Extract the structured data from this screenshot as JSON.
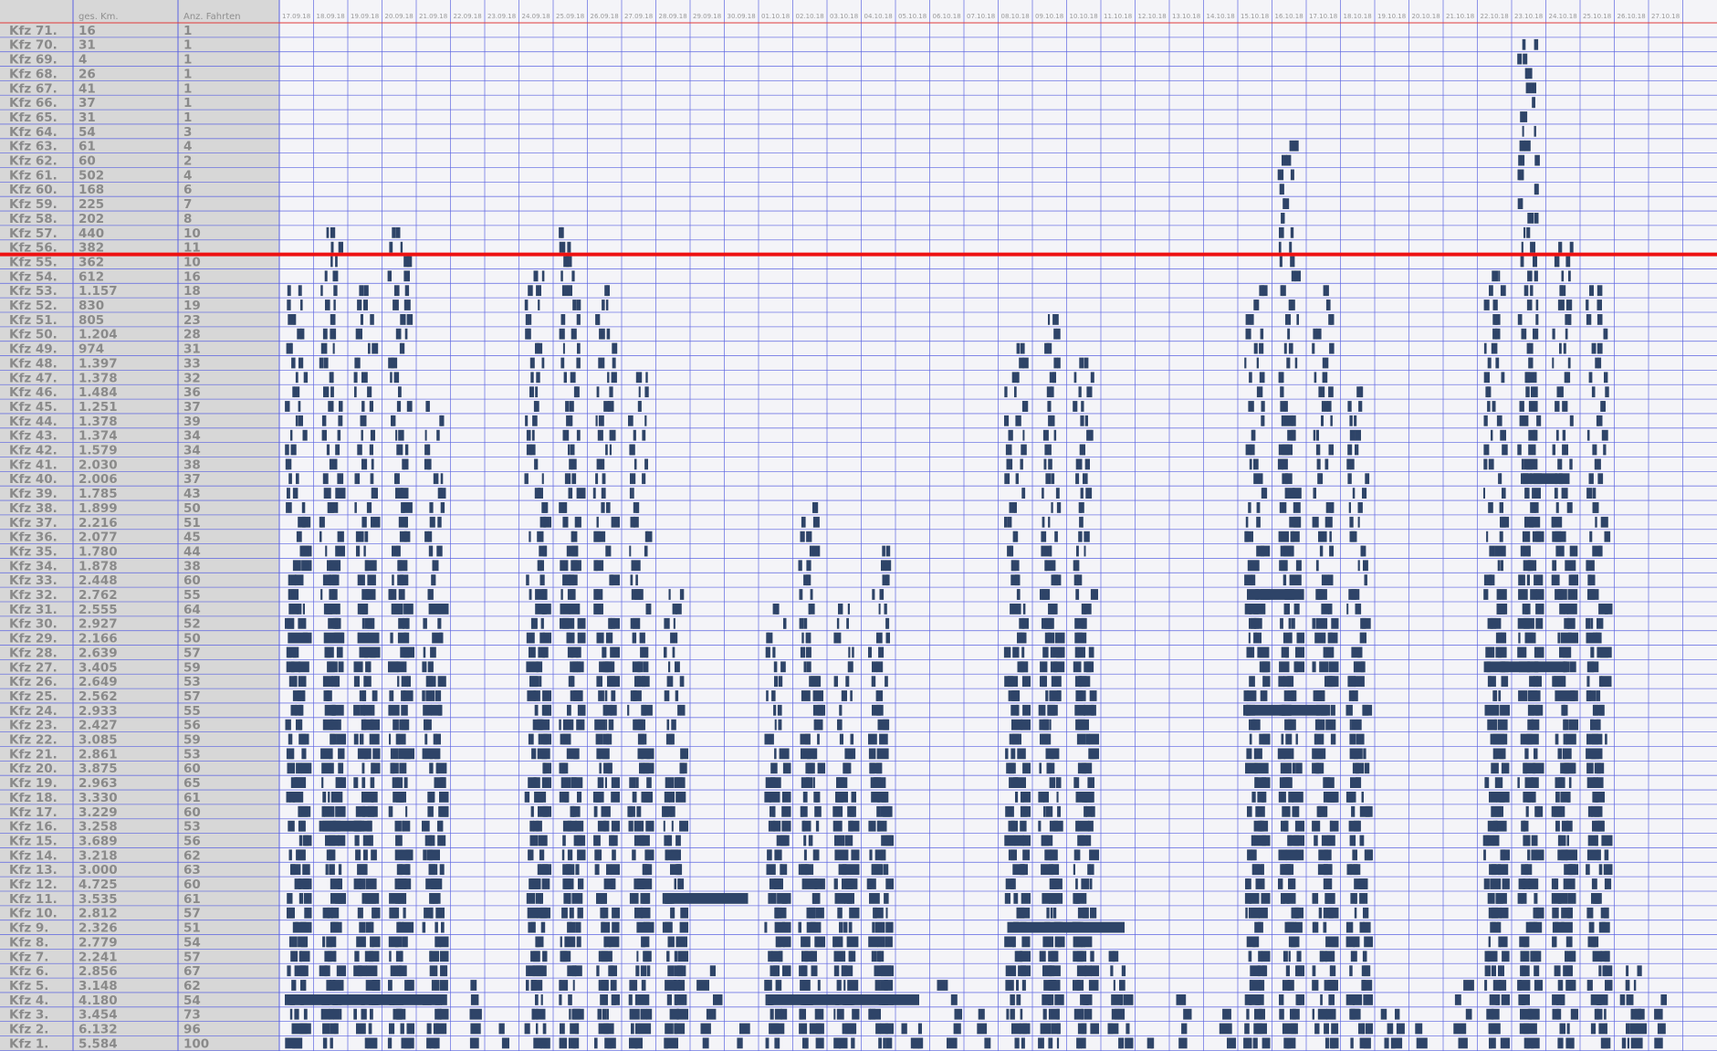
{
  "chart_data": {
    "type": "bar",
    "columns": [
      "",
      "ges. Km.",
      "Anz. Fahrten"
    ],
    "x_ticks": [
      "17.09.18",
      "18.09.18",
      "19.09.18",
      "20.09.18",
      "21.09.18",
      "22.09.18",
      "23.09.18",
      "24.09.18",
      "25.09.18",
      "26.09.18",
      "27.09.18",
      "28.09.18",
      "29.09.18",
      "30.09.18",
      "01.10.18",
      "02.10.18",
      "03.10.18",
      "04.10.18",
      "05.10.18",
      "06.10.18",
      "07.10.18",
      "08.10.18",
      "09.10.18",
      "10.10.18",
      "11.10.18",
      "12.10.18",
      "13.10.18",
      "14.10.18",
      "15.10.18",
      "16.10.18",
      "17.10.18",
      "18.10.18",
      "19.10.18",
      "20.10.18",
      "21.10.18",
      "22.10.18",
      "23.10.18",
      "24.10.18",
      "25.10.18",
      "26.10.18",
      "27.10.18"
    ],
    "threshold_row": "Kfz 56.",
    "colors": {
      "bar": "#2e4468",
      "grid": "#5b63e0",
      "threshold": "#ee1111",
      "label_bg": "#d7d7d7",
      "plot_bg": "#f4f4f8"
    },
    "rows": [
      {
        "name": "Kfz 71.",
        "km": "16",
        "trips": "1"
      },
      {
        "name": "Kfz 70.",
        "km": "31",
        "trips": "1"
      },
      {
        "name": "Kfz 69.",
        "km": "4",
        "trips": "1"
      },
      {
        "name": "Kfz 68.",
        "km": "26",
        "trips": "1"
      },
      {
        "name": "Kfz 67.",
        "km": "41",
        "trips": "1"
      },
      {
        "name": "Kfz 66.",
        "km": "37",
        "trips": "1"
      },
      {
        "name": "Kfz 65.",
        "km": "31",
        "trips": "1"
      },
      {
        "name": "Kfz 64.",
        "km": "54",
        "trips": "3"
      },
      {
        "name": "Kfz 63.",
        "km": "61",
        "trips": "4"
      },
      {
        "name": "Kfz 62.",
        "km": "60",
        "trips": "2"
      },
      {
        "name": "Kfz 61.",
        "km": "502",
        "trips": "4"
      },
      {
        "name": "Kfz 60.",
        "km": "168",
        "trips": "6"
      },
      {
        "name": "Kfz 59.",
        "km": "225",
        "trips": "7"
      },
      {
        "name": "Kfz 58.",
        "km": "202",
        "trips": "8"
      },
      {
        "name": "Kfz 57.",
        "km": "440",
        "trips": "10"
      },
      {
        "name": "Kfz 56.",
        "km": "382",
        "trips": "11"
      },
      {
        "name": "Kfz 55.",
        "km": "362",
        "trips": "10"
      },
      {
        "name": "Kfz 54.",
        "km": "612",
        "trips": "16"
      },
      {
        "name": "Kfz 53.",
        "km": "1.157",
        "trips": "18"
      },
      {
        "name": "Kfz 52.",
        "km": "830",
        "trips": "19"
      },
      {
        "name": "Kfz 51.",
        "km": "805",
        "trips": "23"
      },
      {
        "name": "Kfz 50.",
        "km": "1.204",
        "trips": "28"
      },
      {
        "name": "Kfz 49.",
        "km": "974",
        "trips": "31"
      },
      {
        "name": "Kfz 48.",
        "km": "1.397",
        "trips": "33"
      },
      {
        "name": "Kfz 47.",
        "km": "1.378",
        "trips": "32"
      },
      {
        "name": "Kfz 46.",
        "km": "1.484",
        "trips": "36"
      },
      {
        "name": "Kfz 45.",
        "km": "1.251",
        "trips": "37"
      },
      {
        "name": "Kfz 44.",
        "km": "1.378",
        "trips": "39"
      },
      {
        "name": "Kfz 43.",
        "km": "1.374",
        "trips": "34"
      },
      {
        "name": "Kfz 42.",
        "km": "1.579",
        "trips": "34"
      },
      {
        "name": "Kfz 41.",
        "km": "2.030",
        "trips": "38"
      },
      {
        "name": "Kfz 40.",
        "km": "2.006",
        "trips": "37"
      },
      {
        "name": "Kfz 39.",
        "km": "1.785",
        "trips": "43"
      },
      {
        "name": "Kfz 38.",
        "km": "1.899",
        "trips": "50"
      },
      {
        "name": "Kfz 37.",
        "km": "2.216",
        "trips": "51"
      },
      {
        "name": "Kfz 36.",
        "km": "2.077",
        "trips": "45"
      },
      {
        "name": "Kfz 35.",
        "km": "1.780",
        "trips": "44"
      },
      {
        "name": "Kfz 34.",
        "km": "1.878",
        "trips": "38"
      },
      {
        "name": "Kfz 33.",
        "km": "2.448",
        "trips": "60"
      },
      {
        "name": "Kfz 32.",
        "km": "2.762",
        "trips": "55"
      },
      {
        "name": "Kfz 31.",
        "km": "2.555",
        "trips": "64"
      },
      {
        "name": "Kfz 30.",
        "km": "2.927",
        "trips": "52"
      },
      {
        "name": "Kfz 29.",
        "km": "2.166",
        "trips": "50"
      },
      {
        "name": "Kfz 28.",
        "km": "2.639",
        "trips": "57"
      },
      {
        "name": "Kfz 27.",
        "km": "3.405",
        "trips": "59"
      },
      {
        "name": "Kfz 26.",
        "km": "2.649",
        "trips": "53"
      },
      {
        "name": "Kfz 25.",
        "km": "2.562",
        "trips": "57"
      },
      {
        "name": "Kfz 24.",
        "km": "2.933",
        "trips": "55"
      },
      {
        "name": "Kfz 23.",
        "km": "2.427",
        "trips": "56"
      },
      {
        "name": "Kfz 22.",
        "km": "3.085",
        "trips": "59"
      },
      {
        "name": "Kfz 21.",
        "km": "2.861",
        "trips": "53"
      },
      {
        "name": "Kfz 20.",
        "km": "3.875",
        "trips": "60"
      },
      {
        "name": "Kfz 19.",
        "km": "2.963",
        "trips": "65"
      },
      {
        "name": "Kfz 18.",
        "km": "3.330",
        "trips": "61"
      },
      {
        "name": "Kfz 17.",
        "km": "3.229",
        "trips": "60"
      },
      {
        "name": "Kfz 16.",
        "km": "3.258",
        "trips": "53"
      },
      {
        "name": "Kfz 15.",
        "km": "3.689",
        "trips": "56"
      },
      {
        "name": "Kfz 14.",
        "km": "3.218",
        "trips": "62"
      },
      {
        "name": "Kfz 13.",
        "km": "3.000",
        "trips": "63"
      },
      {
        "name": "Kfz 12.",
        "km": "4.725",
        "trips": "60"
      },
      {
        "name": "Kfz 11.",
        "km": "3.535",
        "trips": "61"
      },
      {
        "name": "Kfz 10.",
        "km": "2.812",
        "trips": "57"
      },
      {
        "name": "Kfz 9.",
        "km": "2.326",
        "trips": "51"
      },
      {
        "name": "Kfz 8.",
        "km": "2.779",
        "trips": "54"
      },
      {
        "name": "Kfz 7.",
        "km": "2.241",
        "trips": "57"
      },
      {
        "name": "Kfz 6.",
        "km": "2.856",
        "trips": "67"
      },
      {
        "name": "Kfz 5.",
        "km": "3.148",
        "trips": "62"
      },
      {
        "name": "Kfz 4.",
        "km": "4.180",
        "trips": "54"
      },
      {
        "name": "Kfz 3.",
        "km": "3.454",
        "trips": "73"
      },
      {
        "name": "Kfz 2.",
        "km": "6.132",
        "trips": "96"
      },
      {
        "name": "Kfz 1.",
        "km": "5.584",
        "trips": "100"
      }
    ],
    "day_peak_vehicle": [
      53,
      57,
      53,
      57,
      45,
      5,
      2,
      54,
      57,
      53,
      47,
      32,
      6,
      2,
      31,
      38,
      31,
      35,
      2,
      5,
      3,
      49,
      51,
      48,
      7,
      1,
      4,
      3,
      53,
      63,
      53,
      46,
      3,
      2,
      5,
      54,
      70,
      56,
      53,
      6,
      4
    ],
    "day_weekend": [
      false,
      false,
      false,
      false,
      false,
      true,
      true,
      false,
      false,
      false,
      false,
      false,
      true,
      true,
      false,
      false,
      false,
      false,
      false,
      true,
      true,
      false,
      false,
      false,
      false,
      false,
      true,
      true,
      false,
      false,
      false,
      false,
      false,
      true,
      true,
      false,
      false,
      false,
      false,
      false,
      true
    ],
    "multi_day_trips": [
      {
        "vehicle": 4,
        "from_day": 0,
        "to_day": 4
      },
      {
        "vehicle": 16,
        "from_day": 1,
        "to_day": 2
      },
      {
        "vehicle": 11,
        "from_day": 11,
        "to_day": 13
      },
      {
        "vehicle": 4,
        "from_day": 14,
        "to_day": 18
      },
      {
        "vehicle": 9,
        "from_day": 21,
        "to_day": 24
      },
      {
        "vehicle": 24,
        "from_day": 28,
        "to_day": 30
      },
      {
        "vehicle": 32,
        "from_day": 28,
        "to_day": 29
      },
      {
        "vehicle": 27,
        "from_day": 35,
        "to_day": 37
      },
      {
        "vehicle": 40,
        "from_day": 36,
        "to_day": 37
      }
    ]
  }
}
